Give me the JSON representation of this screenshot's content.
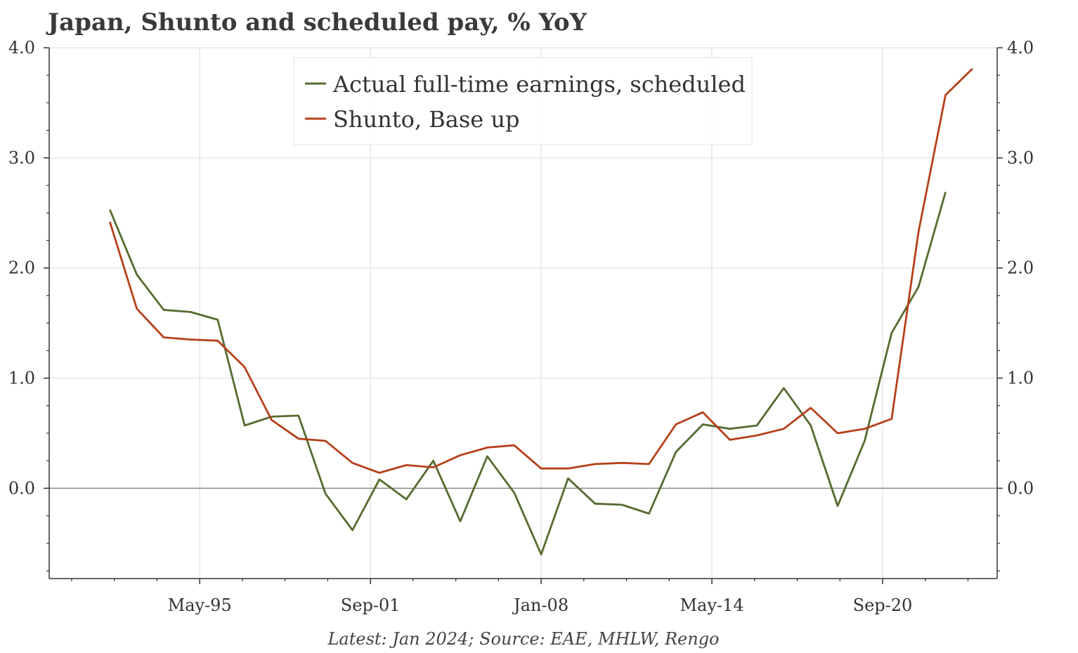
{
  "chart_data": {
    "type": "line",
    "title": "Japan, Shunto and scheduled pay, % YoY",
    "source_note": "Latest: Jan 2024; Source: EAE, MHLW, Rengo",
    "xlabel": "",
    "ylabel": "",
    "x_axis": {
      "tick_labels": [
        "May-95",
        "Sep-01",
        "Jan-08",
        "May-14",
        "Sep-20"
      ],
      "tick_dates": [
        "1995-05",
        "2001-09",
        "2008-01",
        "2014-05",
        "2020-09"
      ],
      "range": [
        "1989-10",
        "2024-12"
      ]
    },
    "ylim": [
      -0.82,
      4.0
    ],
    "y_ticks": [
      0.0,
      1.0,
      2.0,
      3.0,
      4.0
    ],
    "y_tick_labels": [
      "0.0",
      "1.0",
      "2.0",
      "3.0",
      "4.0"
    ],
    "dual_y_axis": true,
    "grid": true,
    "zero_line": true,
    "legend_position": "top-center",
    "series": [
      {
        "name": "Actual full-time earnings, scheduled",
        "color": "#556b2f",
        "x": [
          "1992-01",
          "1993-01",
          "1994-01",
          "1995-01",
          "1996-01",
          "1997-01",
          "1998-01",
          "1999-01",
          "2000-01",
          "2001-01",
          "2002-01",
          "2003-01",
          "2004-01",
          "2005-01",
          "2006-01",
          "2007-01",
          "2008-01",
          "2009-01",
          "2010-01",
          "2011-01",
          "2012-01",
          "2013-01",
          "2014-01",
          "2015-01",
          "2016-01",
          "2017-01",
          "2018-01",
          "2019-01",
          "2020-01",
          "2021-01",
          "2022-01",
          "2023-01",
          "2024-01"
        ],
        "values": [
          2.53,
          1.94,
          1.62,
          1.6,
          1.53,
          0.57,
          0.65,
          0.66,
          -0.05,
          -0.38,
          0.08,
          -0.1,
          0.25,
          -0.3,
          0.29,
          -0.04,
          -0.6,
          0.09,
          -0.14,
          -0.15,
          -0.23,
          0.33,
          0.58,
          0.54,
          0.57,
          0.91,
          0.57,
          -0.16,
          0.43,
          1.41,
          1.83,
          2.69,
          null
        ]
      },
      {
        "name": "Shunto, Base up",
        "color": "#b5401a",
        "x": [
          "1992-01",
          "1993-01",
          "1994-01",
          "1995-01",
          "1996-01",
          "1997-01",
          "1998-01",
          "1999-01",
          "2000-01",
          "2001-01",
          "2002-01",
          "2003-01",
          "2004-01",
          "2005-01",
          "2006-01",
          "2007-01",
          "2008-01",
          "2009-01",
          "2010-01",
          "2011-01",
          "2012-01",
          "2013-01",
          "2014-01",
          "2015-01",
          "2016-01",
          "2017-01",
          "2018-01",
          "2019-01",
          "2020-01",
          "2021-01",
          "2022-01",
          "2023-01",
          "2024-01"
        ],
        "values": [
          2.42,
          1.63,
          1.37,
          1.35,
          1.34,
          1.1,
          0.62,
          0.45,
          0.43,
          0.23,
          0.14,
          0.21,
          0.19,
          0.3,
          0.37,
          0.39,
          0.18,
          0.18,
          0.22,
          0.23,
          0.22,
          0.58,
          0.69,
          0.44,
          0.48,
          0.54,
          0.73,
          0.5,
          0.54,
          0.63,
          2.33,
          3.57,
          3.81
        ]
      }
    ]
  }
}
